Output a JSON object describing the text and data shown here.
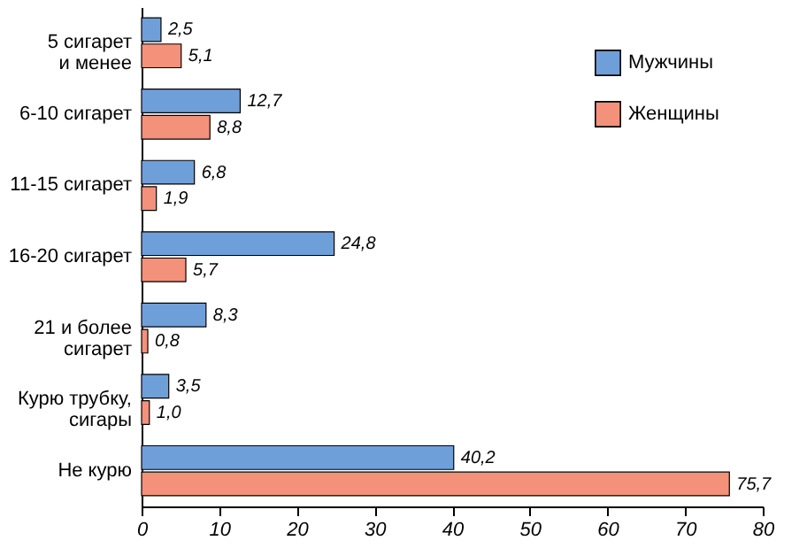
{
  "chart_data": {
    "type": "bar",
    "orientation": "horizontal",
    "categories": [
      "5 сигарет\nи менее",
      "6-10 сигарет",
      "11-15 сигарет",
      "16-20 сигарет",
      "21 и более\nсигарет",
      "Курю трубку,\nсигары",
      "Не курю"
    ],
    "series": [
      {
        "name": "Мужчины",
        "color": "#6f9fd8",
        "values": [
          2.5,
          12.7,
          6.8,
          24.8,
          8.3,
          3.5,
          40.2
        ],
        "value_labels": [
          "2,5",
          "12,7",
          "6,8",
          "24,8",
          "8,3",
          "3,5",
          "40,2"
        ]
      },
      {
        "name": "Женщины",
        "color": "#f4917a",
        "values": [
          5.1,
          8.8,
          1.9,
          5.7,
          0.8,
          1.0,
          75.7
        ],
        "value_labels": [
          "5,1",
          "8,8",
          "1,9",
          "5,7",
          "0,8",
          "1,0",
          "75,7"
        ]
      }
    ],
    "xlim": [
      0,
      80
    ],
    "xticks": [
      0,
      10,
      20,
      30,
      40,
      50,
      60,
      70,
      80
    ],
    "grid": false,
    "legend": "top right"
  }
}
